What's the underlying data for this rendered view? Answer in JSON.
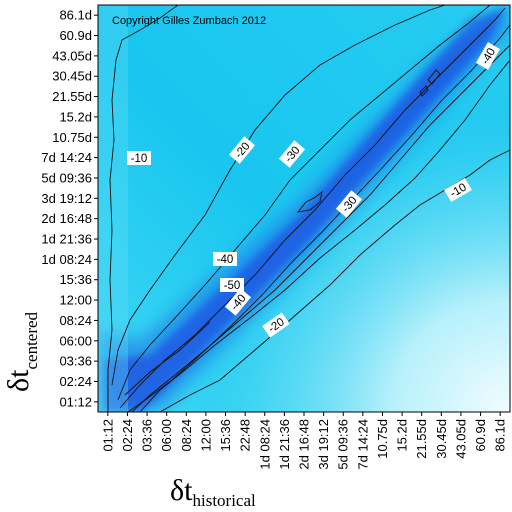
{
  "chart_data": {
    "type": "heatmap",
    "copyright": "Copyright Gilles Zumbach 2012",
    "xlabel": {
      "symbol": "δt",
      "subscript": "historical"
    },
    "ylabel": {
      "symbol": "δt",
      "subscript": "centered"
    },
    "ticks": [
      "01:12",
      "02:24",
      "03:36",
      "06:00",
      "08:24",
      "12:00",
      "15:36",
      "1d 08:24",
      "1d 21:36",
      "2d 16:48",
      "3d 19:12",
      "5d 09:36",
      "7d 14:24",
      "10.75d",
      "15.2d",
      "21.55d",
      "30.45d",
      "43.05d",
      "60.9d",
      "86.1d"
    ],
    "y_ticks": [
      "01:12",
      "02:24",
      "03:36",
      "06:00",
      "08:24",
      "12:00",
      "15:36",
      "1d 08:24",
      "1d 21:36",
      "2d 16:48",
      "3d 19:12",
      "5d 09:36",
      "7d 14:24",
      "10.75d",
      "15.2d",
      "21.55d",
      "30.45d",
      "43.05d",
      "60.9d",
      "86.1d"
    ],
    "x_ticks": [
      "01:12",
      "02:24",
      "03:36",
      "06:00",
      "08:24",
      "12:00",
      "15:36",
      "22:48",
      "1d 08:24",
      "1d 21:36",
      "2d 16:48",
      "3d 19:12",
      "5d 09:36",
      "7d 14:24",
      "10.75d",
      "15.2d",
      "21.55d",
      "30.45d",
      "43.05d",
      "60.9d",
      "86.1d"
    ],
    "contour_levels": [
      -10,
      -20,
      -30,
      -40,
      -50
    ],
    "contour_labels": [
      "-10",
      "-20",
      "-30",
      "-40",
      "-50",
      "-10",
      "-20",
      "-30",
      "-40",
      "-40",
      "-30",
      "-20",
      "-10",
      "-40"
    ],
    "colormap": {
      "low": "#1a3fe0",
      "mid": "#19c6ef",
      "high": "#e8fbff"
    }
  }
}
